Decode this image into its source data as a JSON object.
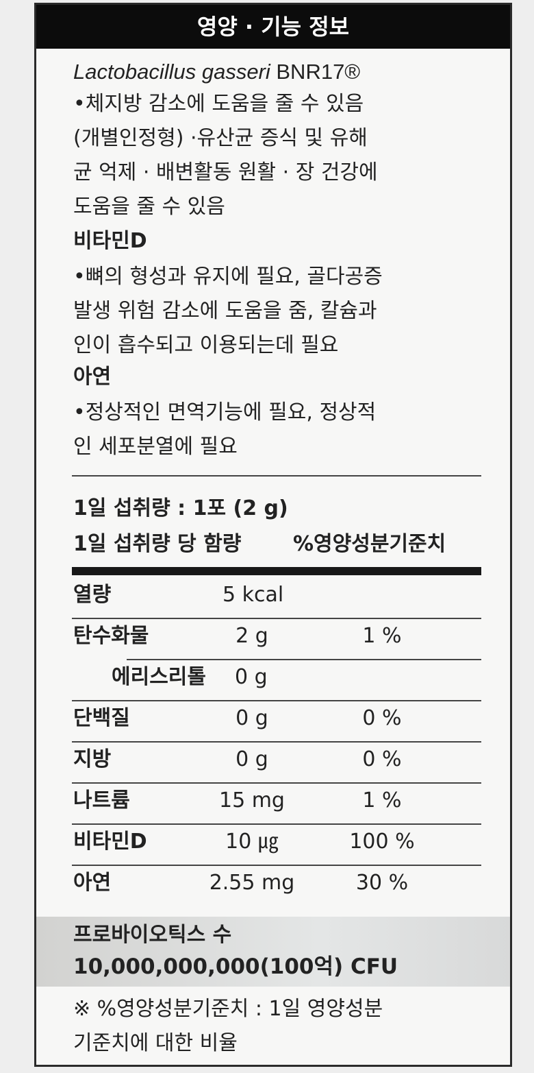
{
  "header": {
    "title": "영양 · 기능 정보"
  },
  "ingredients": [
    {
      "name_italic": "Lactobacillus gasseri",
      "name_rest": " BNR17®",
      "lines": [
        "•체지방 감소에 도움을 줄 수 있음",
        "(개별인정형) ·유산균 증식 및 유해",
        "균 억제 · 배변활동 원활 · 장 건강에",
        "도움을 줄 수 있음"
      ]
    },
    {
      "name": "비타민D",
      "lines": [
        "•뼈의 형성과 유지에 필요, 골다공증",
        "발생 위험 감소에 도움을 줌, 칼슘과",
        "인이 흡수되고 이용되는데 필요"
      ]
    },
    {
      "name": "아연",
      "lines": [
        "•정상적인 면역기능에 필요, 정상적",
        "인 세포분열에 필요"
      ]
    }
  ],
  "serving": {
    "daily_intake": "1일 섭취량 : 1포 (2 g)",
    "col_amount": "1일 섭취량 당  함량",
    "col_dv": "%영양성분기준치"
  },
  "nutrients": [
    {
      "name": "열량",
      "amount": "5 kcal",
      "dv": ""
    },
    {
      "name": "탄수화물",
      "amount": "2 g",
      "dv": "1 %"
    },
    {
      "name": "에리스리톨",
      "amount": "0 g",
      "dv": "",
      "sub": true
    },
    {
      "name": "단백질",
      "amount": "0 g",
      "dv": "0 %"
    },
    {
      "name": "지방",
      "amount": "0 g",
      "dv": "0 %"
    },
    {
      "name": "나트륨",
      "amount": "15 mg",
      "dv": "1 %"
    },
    {
      "name": "비타민D",
      "amount": "10 ㎍",
      "dv": "100 %"
    },
    {
      "name": "아연",
      "amount": "2.55 mg",
      "dv": "30 %"
    }
  ],
  "probiotics": {
    "label": "프로바이오틱스 수",
    "count": "10,000,000,000(100억) CFU"
  },
  "footnote": {
    "lines": [
      "※ %영양성분기준치 : 1일 영양성분",
      "기준치에 대한 비율"
    ]
  }
}
